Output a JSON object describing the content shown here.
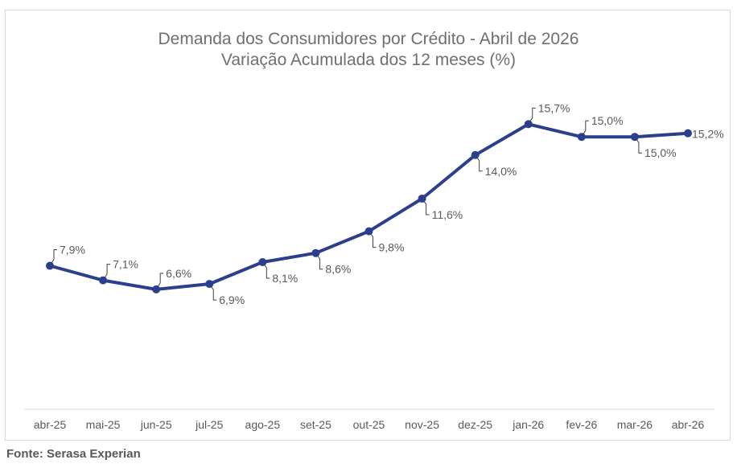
{
  "chart_data": {
    "type": "line",
    "title": "Demanda dos Consumidores por Crédito - Abril de 2026",
    "subtitle": "Variação Acumulada dos 12 meses (%)",
    "categories": [
      "abr-25",
      "mai-25",
      "jun-25",
      "jul-25",
      "ago-25",
      "set-25",
      "out-25",
      "nov-25",
      "dez-25",
      "jan-26",
      "fev-26",
      "mar-26",
      "abr-26"
    ],
    "series": [
      {
        "values": [
          7.9,
          7.1,
          6.6,
          6.9,
          8.1,
          8.6,
          9.8,
          11.6,
          14.0,
          15.7,
          15.0,
          15.0,
          15.2
        ],
        "labels": [
          "7,9%",
          "7,1%",
          "6,6%",
          "6,9%",
          "8,1%",
          "8,6%",
          "9,8%",
          "11,6%",
          "14,0%",
          "15,7%",
          "15,0%",
          "15,0%",
          "15,2%"
        ],
        "color": "#2b3f8c"
      }
    ],
    "ylim": [
      0,
      17.5
    ],
    "grid": false,
    "legend": "none"
  },
  "source": "Fonte: Serasa Experian"
}
